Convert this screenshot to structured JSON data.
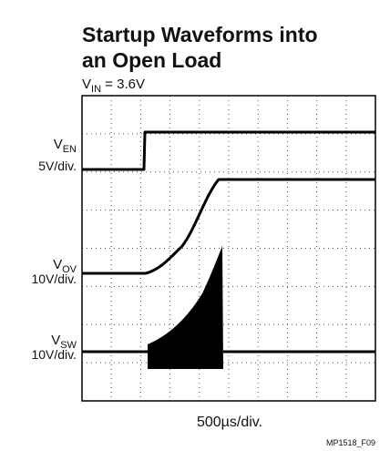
{
  "title": [
    "Startup Waveforms into",
    "an Open Load"
  ],
  "subtitle": {
    "main": "V",
    "sub": "IN",
    "rest": " = 3.6V"
  },
  "channels": [
    {
      "main": "V",
      "sub": "EN",
      "scale": "5V/div."
    },
    {
      "main": "V",
      "sub": "OV",
      "scale": "10V/div."
    },
    {
      "main": "V",
      "sub": "SW",
      "scale": "10V/div."
    }
  ],
  "timebase": "500µs/div.",
  "figure_id": "MP1518_F09"
}
